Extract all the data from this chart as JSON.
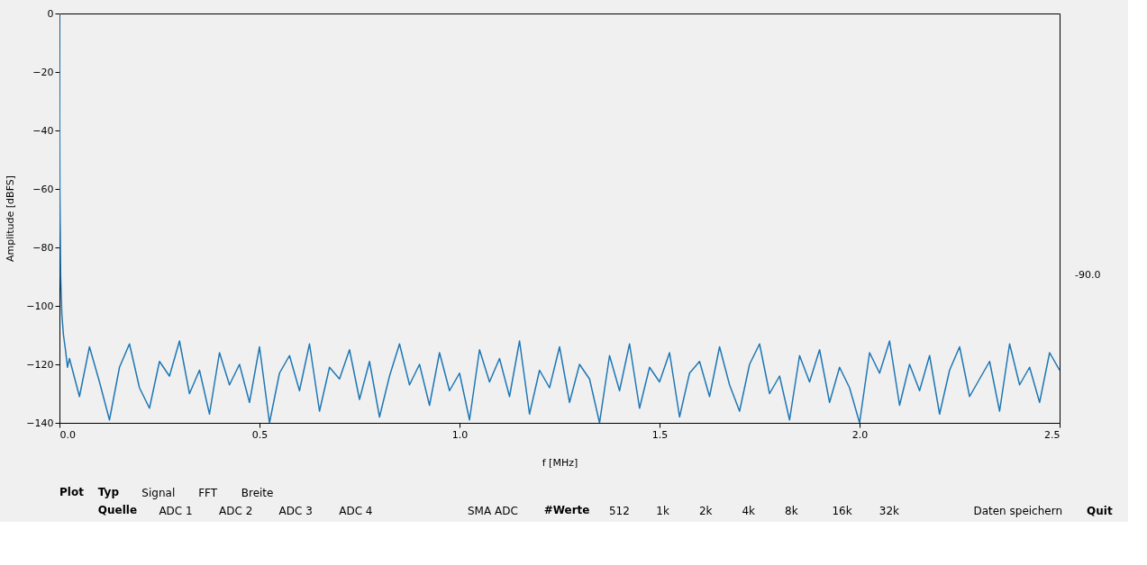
{
  "chart_data": {
    "type": "line",
    "xlabel": "f [MHz]",
    "ylabel": "Amplitude [dBFS]",
    "xlim": [
      0,
      2.5
    ],
    "ylim": [
      -140,
      0
    ],
    "xticks": [
      {
        "value": 0,
        "label": "0.0"
      },
      0.5,
      {
        "value": 1,
        "label": "1.0"
      },
      1.5,
      {
        "value": 2,
        "label": "2.0"
      },
      2.5
    ],
    "yticks": [
      -140,
      -120,
      -100,
      -80,
      -60,
      -40,
      -20,
      0
    ],
    "grid": false,
    "marker": "none",
    "line_style": "solid",
    "x": [
      0,
      0.001,
      0.003,
      0.006,
      0.01,
      0.015,
      0.02,
      0.025,
      0.05,
      0.075,
      0.1,
      0.125,
      0.15,
      0.175,
      0.2,
      0.225,
      0.25,
      0.275,
      0.3,
      0.325,
      0.35,
      0.375,
      0.4,
      0.425,
      0.45,
      0.475,
      0.5,
      0.525,
      0.55,
      0.575,
      0.6,
      0.625,
      0.65,
      0.675,
      0.7,
      0.725,
      0.75,
      0.775,
      0.8,
      0.825,
      0.85,
      0.875,
      0.9,
      0.925,
      0.95,
      0.975,
      1.0,
      1.025,
      1.05,
      1.075,
      1.1,
      1.125,
      1.15,
      1.175,
      1.2,
      1.225,
      1.25,
      1.275,
      1.3,
      1.325,
      1.35,
      1.375,
      1.4,
      1.425,
      1.45,
      1.475,
      1.5,
      1.525,
      1.55,
      1.575,
      1.6,
      1.625,
      1.65,
      1.675,
      1.7,
      1.725,
      1.75,
      1.775,
      1.8,
      1.825,
      1.85,
      1.875,
      1.9,
      1.925,
      1.95,
      1.975,
      2.0,
      2.025,
      2.05,
      2.075,
      2.1,
      2.125,
      2.15,
      2.175,
      2.2,
      2.225,
      2.25,
      2.275,
      2.3,
      2.325,
      2.35,
      2.375,
      2.4,
      2.425,
      2.45,
      2.475,
      2.5
    ],
    "series": [
      {
        "color": "#1f77b4",
        "values": [
          0,
          -60,
          -90,
          -103,
          -110,
          -115,
          -121,
          -118,
          -131,
          -114,
          -126,
          -139,
          -121,
          -113,
          -128,
          -135,
          -119,
          -124,
          -112,
          -130,
          -122,
          -137,
          -116,
          -127,
          -120,
          -133,
          -114,
          -140,
          -123,
          -117,
          -129,
          -113,
          -136,
          -121,
          -125,
          -115,
          -132,
          -119,
          -138,
          -124,
          -113,
          -127,
          -120,
          -134,
          -116,
          -129,
          -123,
          -139,
          -115,
          -126,
          -118,
          -131,
          -112,
          -137,
          -122,
          -128,
          -114,
          -133,
          -120,
          -125,
          -140,
          -117,
          -129,
          -113,
          -135,
          -121,
          -126,
          -116,
          -138,
          -123,
          -119,
          -131,
          -114,
          -127,
          -136,
          -120,
          -113,
          -130,
          -124,
          -139,
          -117,
          -126,
          -115,
          -133,
          -121,
          -128,
          -140,
          -116,
          -123,
          -112,
          -134,
          -120,
          -129,
          -117,
          -137,
          -122,
          -114,
          -131,
          -125,
          -119,
          -136,
          -113,
          -127,
          -121,
          -133,
          -116,
          -122
        ]
      }
    ],
    "annotations": [
      "Plot",
      "Typ",
      "Signal",
      "FFT",
      "Breite",
      "Quelle",
      "ADC 1",
      "ADC 2",
      "ADC 3",
      "ADC 4",
      "SMA ADC",
      "#Werte",
      "512",
      "1k",
      "2k",
      "4k",
      "8k",
      "16k",
      "32k",
      "Daten speichern",
      "Quit",
      "-90.0"
    ]
  }
}
